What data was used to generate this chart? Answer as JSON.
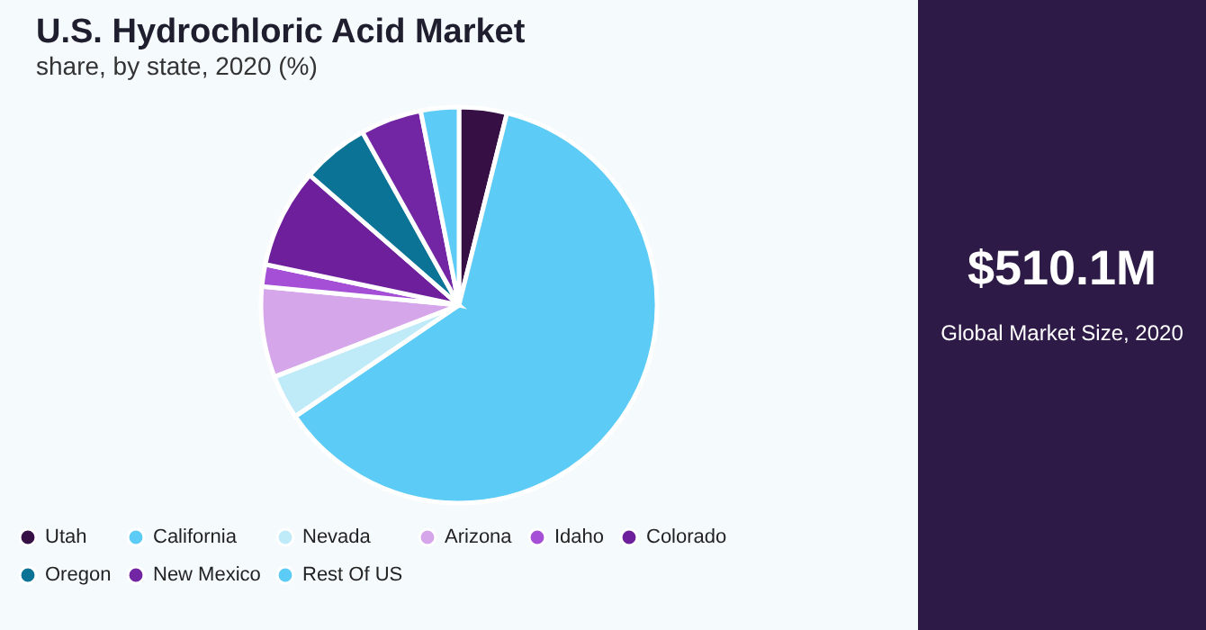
{
  "chart_data": [
    {
      "type": "pie",
      "title": "U.S. Hydrochloric Acid Market",
      "subtitle": "share, by state, 2020 (%)",
      "categories": [
        "Utah",
        "California",
        "Nevada",
        "Arizona",
        "Idaho",
        "Colorado",
        "Oregon",
        "New Mexico",
        "Rest Of US"
      ],
      "values": [
        3.9,
        61.6,
        3.6,
        7.4,
        1.8,
        8.1,
        5.5,
        5.0,
        3.1
      ],
      "colors": [
        "#361045",
        "#5ccbf5",
        "#bfeaf8",
        "#d5a6ea",
        "#a44fd6",
        "#6d1f9c",
        "#0a7396",
        "#7326a4",
        "#5ccbf5"
      ],
      "legend": "bottom"
    },
    {
      "type": "other",
      "title": "$510.1M",
      "subtitle": "Global Market Size, 2020"
    }
  ]
}
